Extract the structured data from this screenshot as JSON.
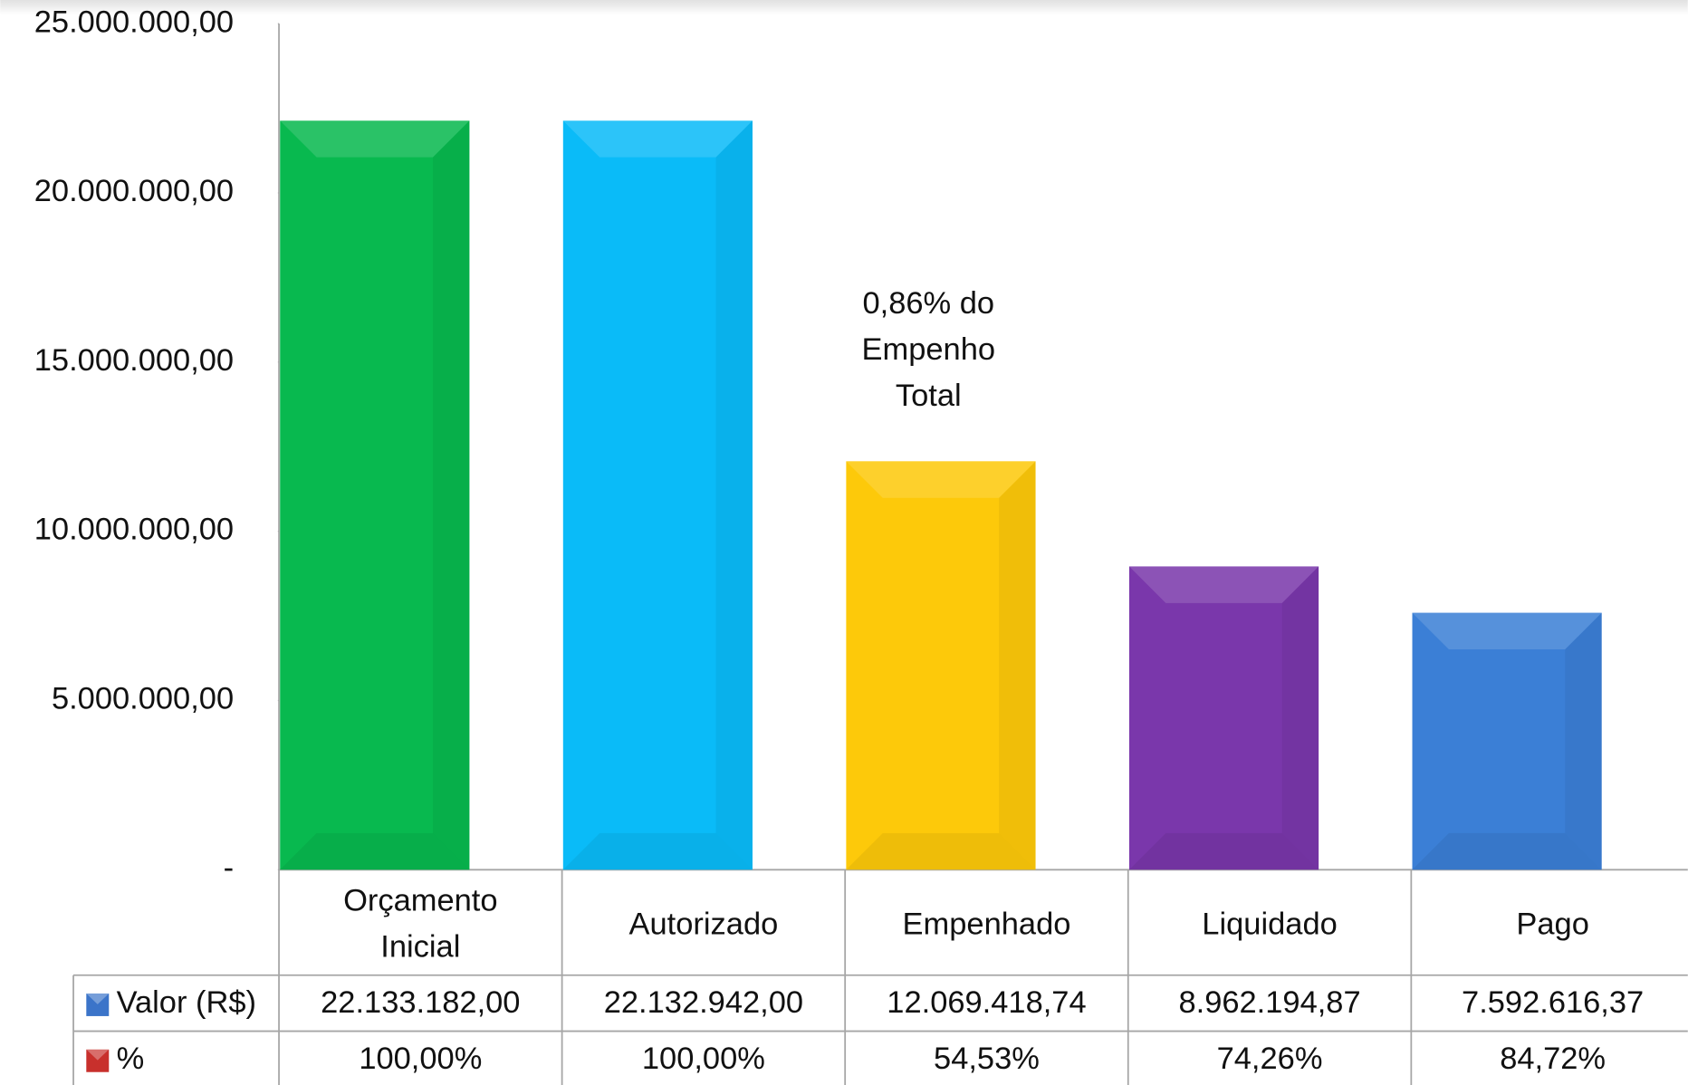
{
  "chart_data": {
    "type": "bar",
    "annotation": "0,86% do Empenho Total",
    "categories": [
      "Orçamento Inicial",
      "Autorizado",
      "Empenhado",
      "Liquidado",
      "Pago"
    ],
    "series": [
      {
        "name": "Valor (R$)",
        "color": "#3b74c9",
        "colors": [
          "#08b94f",
          "#0abbf8",
          "#fdc90a",
          "#7a37ab",
          "#3b7fd6"
        ],
        "values": [
          22133182,
          22132942,
          12069418.74,
          8962194.87,
          7592616.37
        ],
        "value_labels": [
          "22.133.182,00",
          "22.132.942,00",
          "12.069.418,74",
          "8.962.194,87",
          "7.592.616,37"
        ]
      },
      {
        "name": "%",
        "color": "#c8302c",
        "values": [
          100,
          100,
          54.53,
          74.26,
          84.72
        ],
        "value_labels": [
          "100,00%",
          "100,00%",
          "54,53%",
          "74,26%",
          "84,72%"
        ]
      }
    ],
    "ylim": [
      0,
      25000000
    ],
    "yticks": [
      {
        "value": 0,
        "label": "-"
      },
      {
        "value": 5000000,
        "label": "5.000.000,00"
      },
      {
        "value": 10000000,
        "label": "10.000.000,00"
      },
      {
        "value": 15000000,
        "label": "15.000.000,00"
      },
      {
        "value": 20000000,
        "label": "20.000.000,00"
      },
      {
        "value": 25000000,
        "label": "25.000.000,00"
      }
    ]
  }
}
